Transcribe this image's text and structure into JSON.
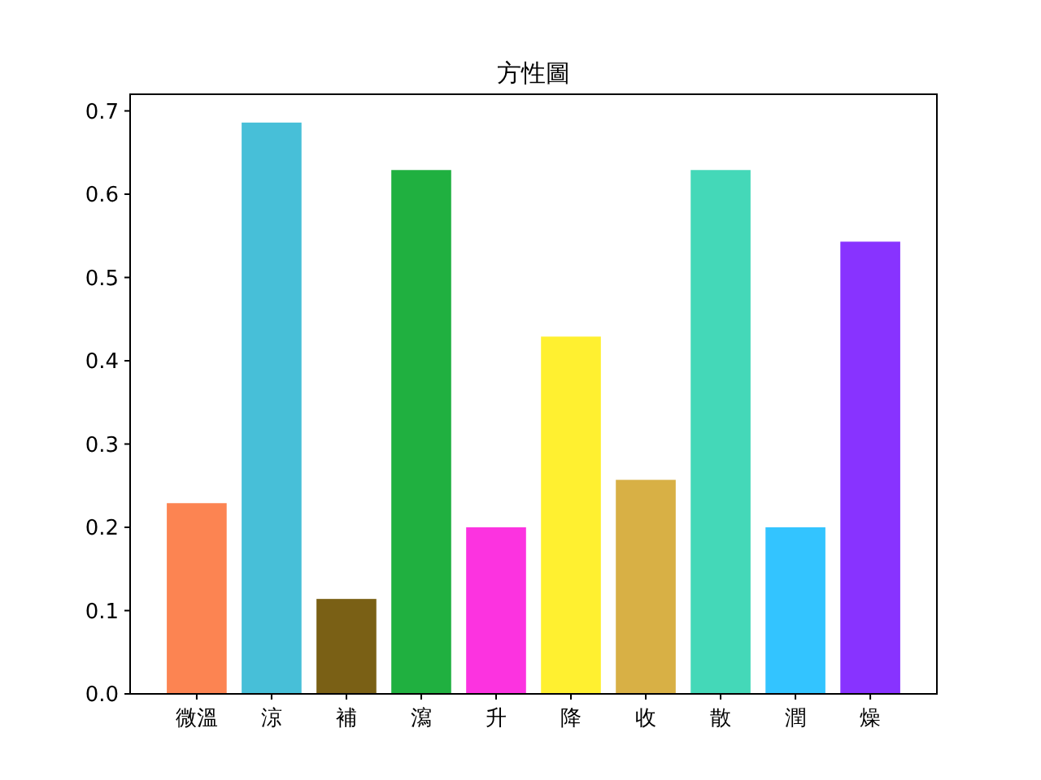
{
  "chart_data": {
    "type": "bar",
    "title": "方性圖",
    "categories": [
      "微溫",
      "涼",
      "補",
      "瀉",
      "升",
      "降",
      "收",
      "散",
      "潤",
      "燥"
    ],
    "values": [
      0.229,
      0.686,
      0.114,
      0.629,
      0.2,
      0.429,
      0.257,
      0.629,
      0.2,
      0.543
    ],
    "colors": [
      "#fc8452",
      "#47bfd8",
      "#7a6015",
      "#20b040",
      "#fc33e0",
      "#fff030",
      "#d8b045",
      "#44d8b8",
      "#33c4ff",
      "#8833ff"
    ],
    "ylim": [
      0,
      0.72
    ],
    "yticks": [
      {
        "value": 0,
        "label": "0.0"
      },
      0.1,
      0.2,
      0.3,
      0.4,
      0.5,
      0.6,
      0.7
    ]
  }
}
